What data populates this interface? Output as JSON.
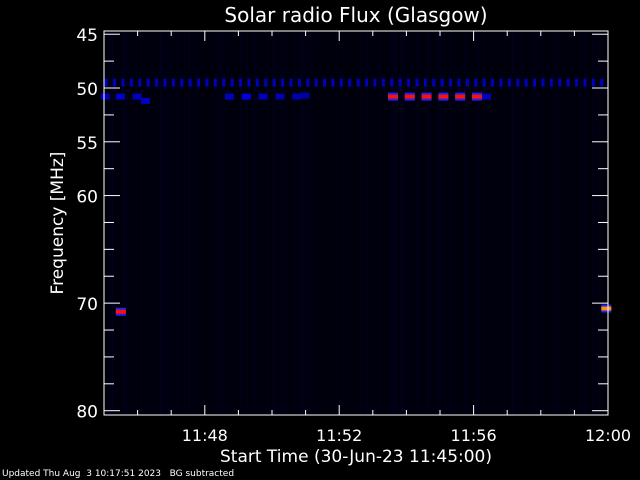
{
  "chart_data": {
    "type": "heatmap",
    "title": "Solar radio Flux (Glasgow)",
    "xlabel": "Start Time (30-Jun-23 11:45:00)",
    "ylabel": "Frequency [MHz]",
    "x_range_minutes": [
      0,
      15
    ],
    "ylim": [
      44.7,
      80.4
    ],
    "y_inverted": true,
    "x_ticks": [
      {
        "min": 3,
        "label": "11:48"
      },
      {
        "min": 7,
        "label": "11:52"
      },
      {
        "min": 11,
        "label": "11:56"
      },
      {
        "min": 15,
        "label": "12:00"
      }
    ],
    "y_ticks": [
      45,
      50,
      55,
      60,
      70,
      80
    ],
    "y_minor_step": 2.5,
    "colormap": [
      "#000000",
      "#0a0a3a",
      "#2020ff",
      "#ff0000",
      "#ff8000"
    ],
    "features": {
      "periodic_band": {
        "freq": 49.5,
        "period_min": 0.25,
        "intensity": 0.5
      },
      "spots": [
        {
          "t": 0.05,
          "f": 50.8,
          "i": 0.5
        },
        {
          "t": 0.5,
          "f": 50.8,
          "i": 0.55
        },
        {
          "t": 1.0,
          "f": 50.8,
          "i": 0.5
        },
        {
          "t": 1.25,
          "f": 51.2,
          "i": 0.5
        },
        {
          "t": 3.75,
          "f": 50.8,
          "i": 0.5
        },
        {
          "t": 4.25,
          "f": 50.8,
          "i": 0.6
        },
        {
          "t": 4.75,
          "f": 50.8,
          "i": 0.5
        },
        {
          "t": 5.25,
          "f": 50.8,
          "i": 0.45
        },
        {
          "t": 5.75,
          "f": 50.8,
          "i": 0.45
        },
        {
          "t": 6.0,
          "f": 50.7,
          "i": 0.4
        },
        {
          "t": 8.6,
          "f": 50.8,
          "i": 0.9
        },
        {
          "t": 9.1,
          "f": 50.8,
          "i": 0.9
        },
        {
          "t": 9.6,
          "f": 50.8,
          "i": 0.9
        },
        {
          "t": 10.1,
          "f": 50.8,
          "i": 0.9
        },
        {
          "t": 10.6,
          "f": 50.8,
          "i": 0.9
        },
        {
          "t": 11.1,
          "f": 50.8,
          "i": 0.9
        },
        {
          "t": 11.4,
          "f": 50.8,
          "i": 0.5
        },
        {
          "t": 0.5,
          "f": 70.8,
          "i": 0.75
        },
        {
          "t": 14.95,
          "f": 70.5,
          "i": 0.95
        }
      ]
    }
  },
  "footer": {
    "updated": "Updated Thu Aug  3 10:17:51 2023",
    "note": "BG subtracted"
  }
}
